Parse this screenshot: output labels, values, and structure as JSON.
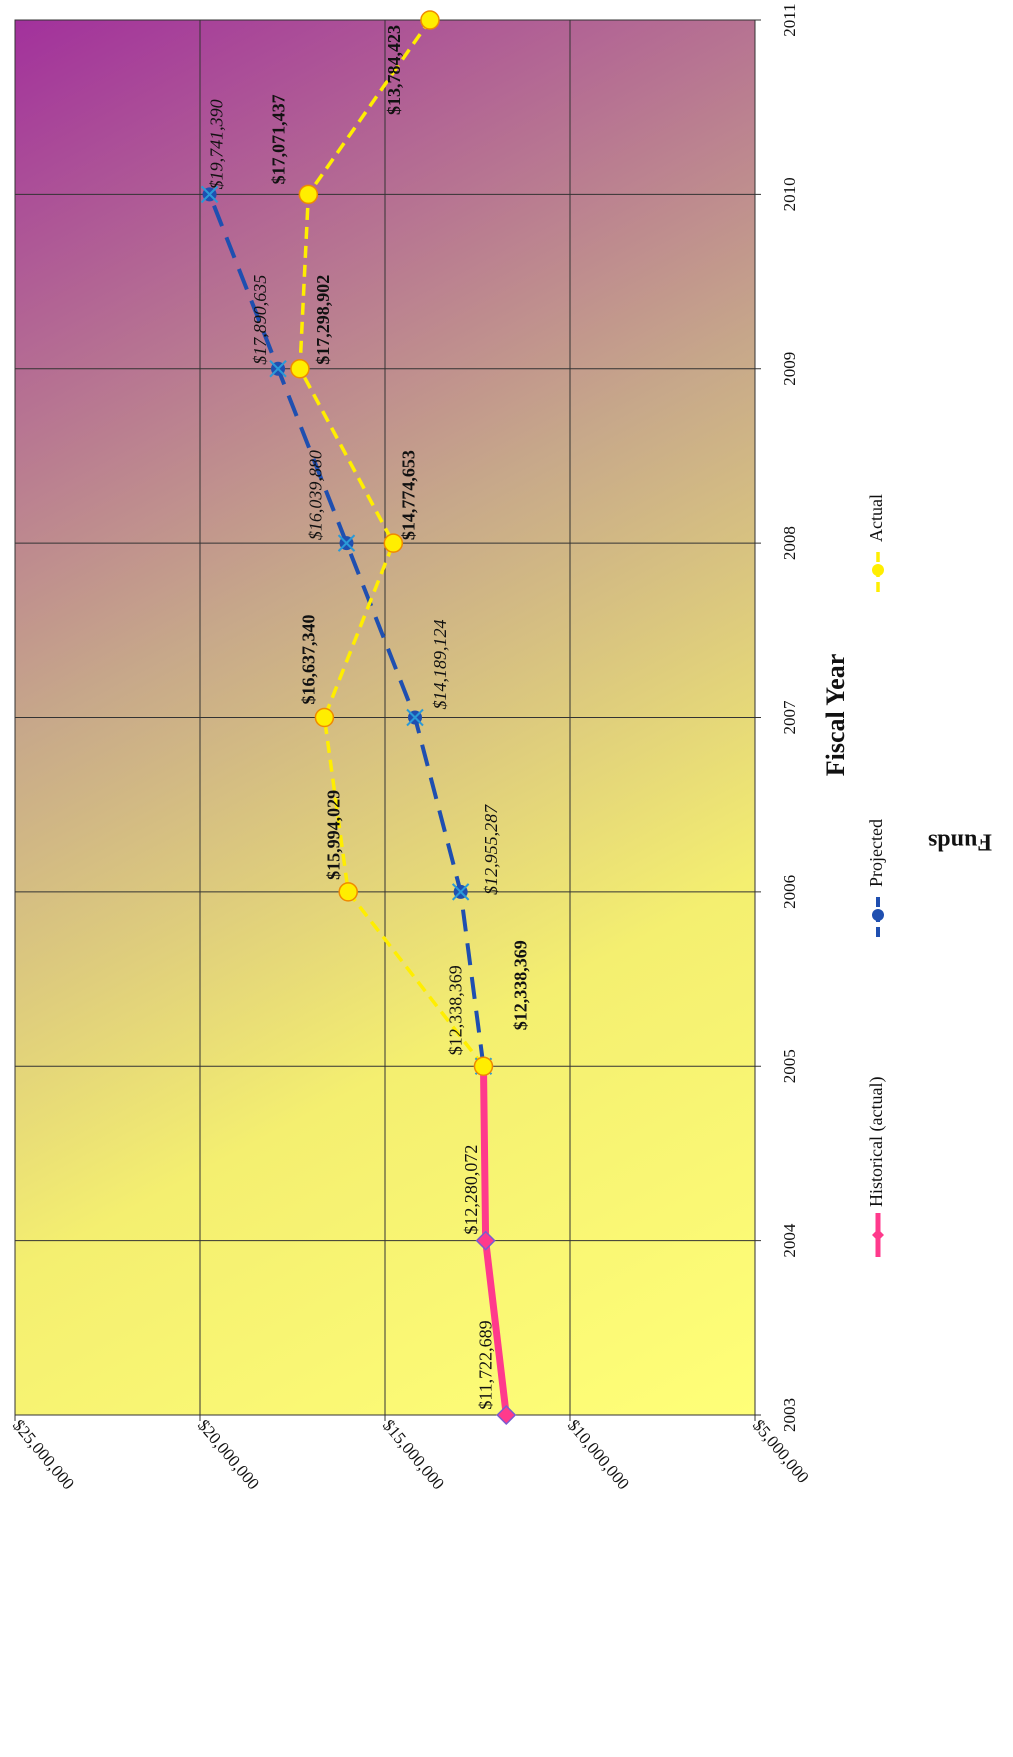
{
  "chart_data": {
    "type": "line",
    "x_label": "Fiscal Year",
    "y_label": "Funds",
    "xlim": [
      2003,
      2011
    ],
    "xticks": [
      2003,
      2004,
      2005,
      2006,
      2007,
      2008,
      2009,
      2010,
      2011
    ],
    "ylim": [
      5000000,
      25000000
    ],
    "yticks": [
      {
        "value": 5000000,
        "label": "$5,000,000"
      },
      {
        "value": 10000000,
        "label": "$10,000,000"
      },
      {
        "value": 15000000,
        "label": "$15,000,000"
      },
      {
        "value": 20000000,
        "label": "$20,000,000"
      },
      {
        "value": 25000000,
        "label": "$25,000,000"
      }
    ],
    "grid": true,
    "series": [
      {
        "name": "Historical (actual)",
        "color": "#ff3a8c",
        "x": [
          2003,
          2004,
          2005
        ],
        "values": [
          11722689,
          12280072,
          12338369
        ],
        "value_labels": [
          "$11,722,689",
          "$12,280,072",
          "$12,338,369"
        ]
      },
      {
        "name": "Projected",
        "color": "#1f4fb0",
        "x": [
          2005,
          2006,
          2007,
          2008,
          2009,
          2010
        ],
        "values": [
          12338369,
          12955287,
          14189124,
          16039880,
          17890635,
          19741390
        ],
        "value_labels": [
          null,
          "$12,955,287",
          "$14,189,124",
          "$16,039,880",
          "$17,890,635",
          "$19,741,390"
        ]
      },
      {
        "name": "Actual",
        "color": "#ffee00",
        "x": [
          2005,
          2006,
          2007,
          2008,
          2009,
          2010,
          2011
        ],
        "values": [
          12338369,
          15994029,
          16637340,
          14774653,
          17298902,
          17071437,
          13784423
        ],
        "value_labels": [
          "$12,338,369",
          "$15,994,029",
          "$16,637,340",
          "$14,774,653",
          "$17,298,902",
          "$17,071,437",
          "$13,784,423"
        ]
      }
    ]
  }
}
